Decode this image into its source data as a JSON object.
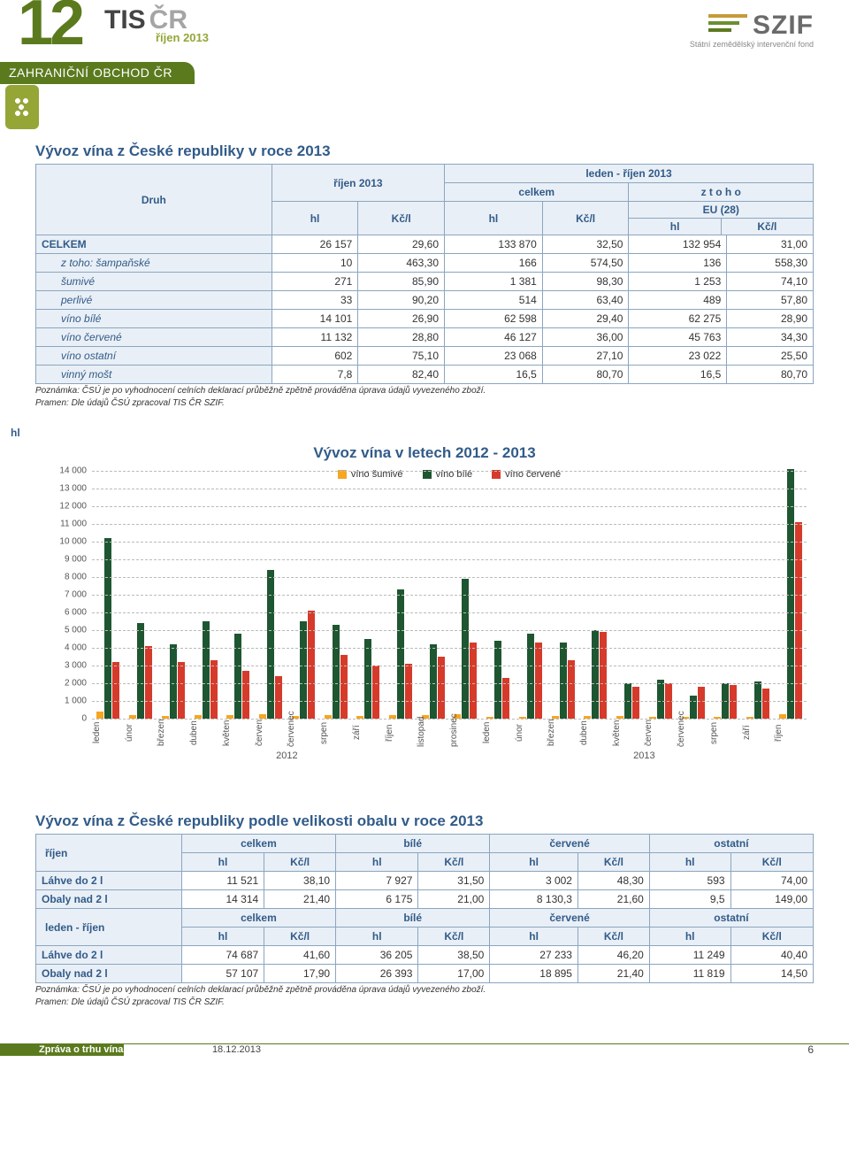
{
  "header": {
    "issue_number": "12",
    "tis": "TIS",
    "cr": "ČR",
    "issue_date": "říjen 2013",
    "section_title": "ZAHRANIČNÍ OBCHOD ČR",
    "szif": "SZIF",
    "szif_subtitle": "Státní zemědělský intervenční fond"
  },
  "table1": {
    "title": "Vývoz vína z České republiky v roce 2013",
    "col_druh": "Druh",
    "col_rijen": "říjen 2013",
    "col_period": "leden - říjen 2013",
    "col_celkem": "celkem",
    "col_ztoho": "z  t o h o",
    "col_eu": "EU (28)",
    "unit_hl": "hl",
    "unit_kc": "Kč/l",
    "rows": [
      {
        "label": "CELKEM",
        "indent": false,
        "v": [
          "26 157",
          "29,60",
          "133 870",
          "32,50",
          "132 954",
          "31,00"
        ]
      },
      {
        "label": "z toho: šampaňské",
        "indent": true,
        "v": [
          "10",
          "463,30",
          "166",
          "574,50",
          "136",
          "558,30"
        ]
      },
      {
        "label": "šumivé",
        "indent": true,
        "v": [
          "271",
          "85,90",
          "1 381",
          "98,30",
          "1 253",
          "74,10"
        ]
      },
      {
        "label": "perlivé",
        "indent": true,
        "v": [
          "33",
          "90,20",
          "514",
          "63,40",
          "489",
          "57,80"
        ]
      },
      {
        "label": "víno bílé",
        "indent": true,
        "v": [
          "14 101",
          "26,90",
          "62 598",
          "29,40",
          "62 275",
          "28,90"
        ]
      },
      {
        "label": "víno červené",
        "indent": true,
        "v": [
          "11 132",
          "28,80",
          "46 127",
          "36,00",
          "45 763",
          "34,30"
        ]
      },
      {
        "label": "víno ostatní",
        "indent": true,
        "v": [
          "602",
          "75,10",
          "23 068",
          "27,10",
          "23 022",
          "25,50"
        ]
      },
      {
        "label": "vinný mošt",
        "indent": true,
        "v": [
          "7,8",
          "82,40",
          "16,5",
          "80,70",
          "16,5",
          "80,70"
        ]
      }
    ],
    "note1": "Poznámka: ČSÚ je po vyhodnocení celních deklarací průběžně zpětně prováděna úprava údajů vyvezeného zboží.",
    "note2": "Pramen: Dle údajů ČSÚ zpracoval TIS ČR SZIF."
  },
  "chart": {
    "title": "Vývoz vína v letech 2012 - 2013",
    "ylabel": "hl",
    "type": "bar",
    "ymax": 14000,
    "ytick_step": 1000,
    "yticks": [
      "0",
      "1 000",
      "2 000",
      "3 000",
      "4 000",
      "5 000",
      "6 000",
      "7 000",
      "8 000",
      "9 000",
      "10 000",
      "11 000",
      "12 000",
      "13 000",
      "14 000"
    ],
    "grid_color": "#bbbbbb",
    "background_color": "#ffffff",
    "series": [
      {
        "name": "víno šumivé",
        "color": "#f5a623"
      },
      {
        "name": "víno bílé",
        "color": "#1e5631"
      },
      {
        "name": "víno červené",
        "color": "#d63a2b"
      }
    ],
    "year_labels": [
      "2012",
      "2013"
    ],
    "year_span": [
      12,
      10
    ],
    "months": [
      "leden",
      "únor",
      "březen",
      "duben",
      "květen",
      "červen",
      "červenec",
      "srpen",
      "září",
      "říjen",
      "listopad",
      "prosinec",
      "leden",
      "únor",
      "březen",
      "duben",
      "květen",
      "červen",
      "červenec",
      "srpen",
      "září",
      "říjen"
    ],
    "data": [
      [
        400,
        10200,
        3200
      ],
      [
        200,
        5400,
        4100
      ],
      [
        150,
        4200,
        3200
      ],
      [
        200,
        5500,
        3300
      ],
      [
        180,
        4800,
        2700
      ],
      [
        250,
        8400,
        2400
      ],
      [
        150,
        5500,
        6100
      ],
      [
        180,
        5300,
        3600
      ],
      [
        160,
        4500,
        3000
      ],
      [
        200,
        7300,
        3100
      ],
      [
        200,
        4200,
        3500
      ],
      [
        240,
        7900,
        4300
      ],
      [
        120,
        4400,
        2300
      ],
      [
        120,
        4800,
        4300
      ],
      [
        130,
        4300,
        3300
      ],
      [
        140,
        5000,
        4900
      ],
      [
        130,
        2000,
        1800
      ],
      [
        110,
        2200,
        2000
      ],
      [
        100,
        1300,
        1800
      ],
      [
        120,
        2000,
        1900
      ],
      [
        120,
        2100,
        1700
      ],
      [
        270,
        14100,
        11100
      ]
    ]
  },
  "table2": {
    "title": "Vývoz vína z České republiky podle velikosti obalu v roce 2013",
    "period1": "říjen",
    "period2": "leden - říjen",
    "col_celkem": "celkem",
    "col_bile": "bílé",
    "col_cervene": "červené",
    "col_ostatni": "ostatní",
    "unit_hl": "hl",
    "unit_kc": "Kč/l",
    "row_lahve": "Láhve do 2 l",
    "row_obaly": "Obaly nad 2 l",
    "r1": [
      "11 521",
      "38,10",
      "7 927",
      "31,50",
      "3 002",
      "48,30",
      "593",
      "74,00"
    ],
    "r2": [
      "14 314",
      "21,40",
      "6 175",
      "21,00",
      "8 130,3",
      "21,60",
      "9,5",
      "149,00"
    ],
    "r3": [
      "74 687",
      "41,60",
      "36 205",
      "38,50",
      "27 233",
      "46,20",
      "11 249",
      "40,40"
    ],
    "r4": [
      "57 107",
      "17,90",
      "26 393",
      "17,00",
      "18 895",
      "21,40",
      "11 819",
      "14,50"
    ],
    "note1": "Poznámka: ČSÚ je po vyhodnocení celních deklarací průběžně zpětně prováděna úprava údajů vyvezeného zboží.",
    "note2": "Pramen: Dle údajů ČSÚ zpracoval TIS ČR SZIF."
  },
  "footer": {
    "report": "Zpráva o trhu vína a vinných hroznů",
    "date": "18.12.2013",
    "page": "6"
  }
}
